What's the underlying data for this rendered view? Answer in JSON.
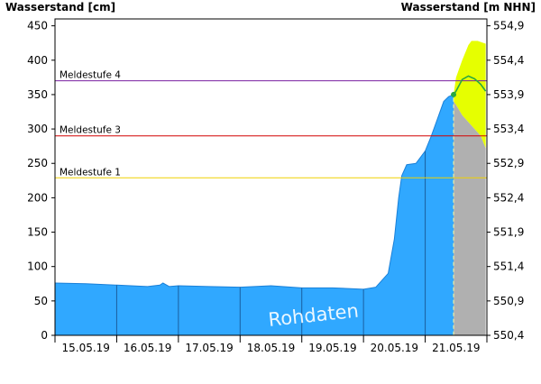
{
  "chart_data": {
    "type": "area",
    "xlabel": "",
    "ylabel_left": "Wasserstand [cm]",
    "ylabel_right": "Wasserstand [m NHN]",
    "ylim": [
      0,
      460
    ],
    "yticks": [
      0,
      50,
      100,
      150,
      200,
      250,
      300,
      350,
      400,
      450
    ],
    "yticks_right": [
      "550,4",
      "550,9",
      "551,4",
      "551,9",
      "552,4",
      "552,9",
      "553,4",
      "553,9",
      "554,4",
      "554,9"
    ],
    "x_day_labels": [
      "15.05.19",
      "16.05.19",
      "17.05.19",
      "18.05.19",
      "19.05.19",
      "20.05.19",
      "21.05.19"
    ],
    "xlim": [
      0,
      7
    ],
    "watermark": "Rohdaten",
    "thresholds": [
      {
        "name": "Meldestufe 4",
        "value": 370,
        "color": "#7a1fa0"
      },
      {
        "name": "Meldestufe 3",
        "value": 290,
        "color": "#d40000"
      },
      {
        "name": "Meldestufe 1",
        "value": 229,
        "color": "#f0d000"
      }
    ],
    "now_day": 6.46,
    "series": [
      {
        "role": "measured",
        "color": "#30a8ff",
        "points": [
          [
            0,
            76
          ],
          [
            0.5,
            75
          ],
          [
            1,
            73
          ],
          [
            1.5,
            71
          ],
          [
            1.7,
            73
          ],
          [
            1.75,
            76
          ],
          [
            1.85,
            71
          ],
          [
            2,
            72
          ],
          [
            2.5,
            71
          ],
          [
            3,
            70
          ],
          [
            3.5,
            72
          ],
          [
            4,
            69
          ],
          [
            4.5,
            69
          ],
          [
            5,
            67
          ],
          [
            5.2,
            70
          ],
          [
            5.4,
            90
          ],
          [
            5.5,
            140
          ],
          [
            5.57,
            200
          ],
          [
            5.62,
            232
          ],
          [
            5.7,
            248
          ],
          [
            5.85,
            250
          ],
          [
            6,
            268
          ],
          [
            6.1,
            290
          ],
          [
            6.2,
            315
          ],
          [
            6.3,
            340
          ],
          [
            6.38,
            347
          ],
          [
            6.46,
            350
          ]
        ]
      },
      {
        "role": "forecast",
        "color": "#2aa840",
        "points": [
          [
            6.46,
            350
          ],
          [
            6.5,
            355
          ],
          [
            6.6,
            372
          ],
          [
            6.7,
            377
          ],
          [
            6.8,
            373
          ],
          [
            6.9,
            365
          ],
          [
            6.98,
            355
          ]
        ]
      },
      {
        "role": "forecast_upper",
        "color": "#e6ff00",
        "points": [
          [
            6.46,
            350
          ],
          [
            6.5,
            375
          ],
          [
            6.6,
            400
          ],
          [
            6.7,
            422
          ],
          [
            6.75,
            428
          ],
          [
            6.85,
            428
          ],
          [
            6.98,
            424
          ]
        ]
      },
      {
        "role": "forecast_lower",
        "color": "#b0b0b0",
        "points": [
          [
            6.46,
            340
          ],
          [
            6.5,
            335
          ],
          [
            6.6,
            320
          ],
          [
            6.7,
            310
          ],
          [
            6.8,
            300
          ],
          [
            6.9,
            290
          ],
          [
            6.98,
            272
          ]
        ]
      }
    ]
  }
}
